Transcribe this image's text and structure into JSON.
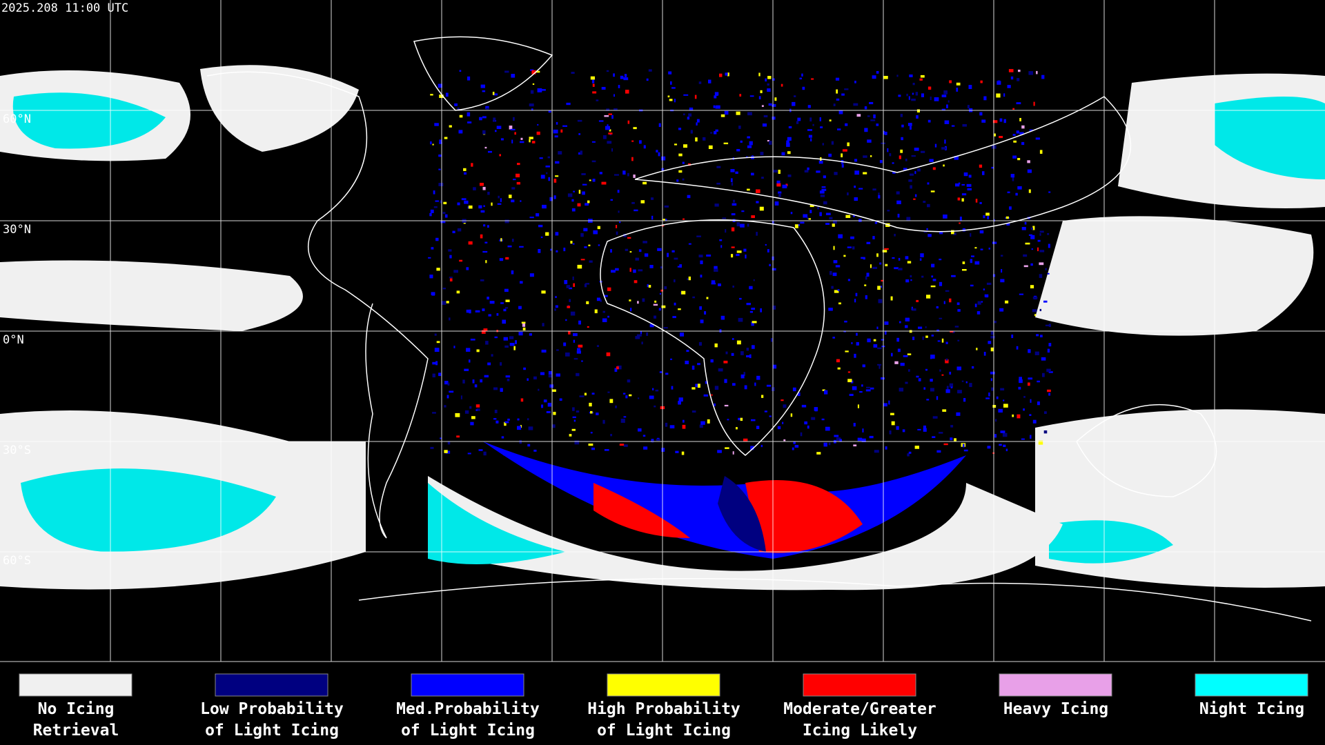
{
  "timestamp": "2025.208 11:00 UTC",
  "latitude_labels": [
    "60°N",
    "30°N",
    "0°N",
    "30°S",
    "60°S"
  ],
  "legend": [
    {
      "color": "#f0f0f0",
      "lines": [
        "No Icing",
        "Retrieval"
      ]
    },
    {
      "color": "#000080",
      "lines": [
        "Low Probability",
        "of Light Icing"
      ]
    },
    {
      "color": "#0000ff",
      "lines": [
        "Med.Probability",
        "of Light Icing"
      ]
    },
    {
      "color": "#ffff00",
      "lines": [
        "High Probability",
        "of Light Icing"
      ]
    },
    {
      "color": "#ff0000",
      "lines": [
        "Moderate/Greater",
        "Icing Likely"
      ]
    },
    {
      "color": "#e8a0e8",
      "lines": [
        "Heavy Icing"
      ]
    },
    {
      "color": "#00ffff",
      "lines": [
        "Night Icing"
      ]
    }
  ]
}
